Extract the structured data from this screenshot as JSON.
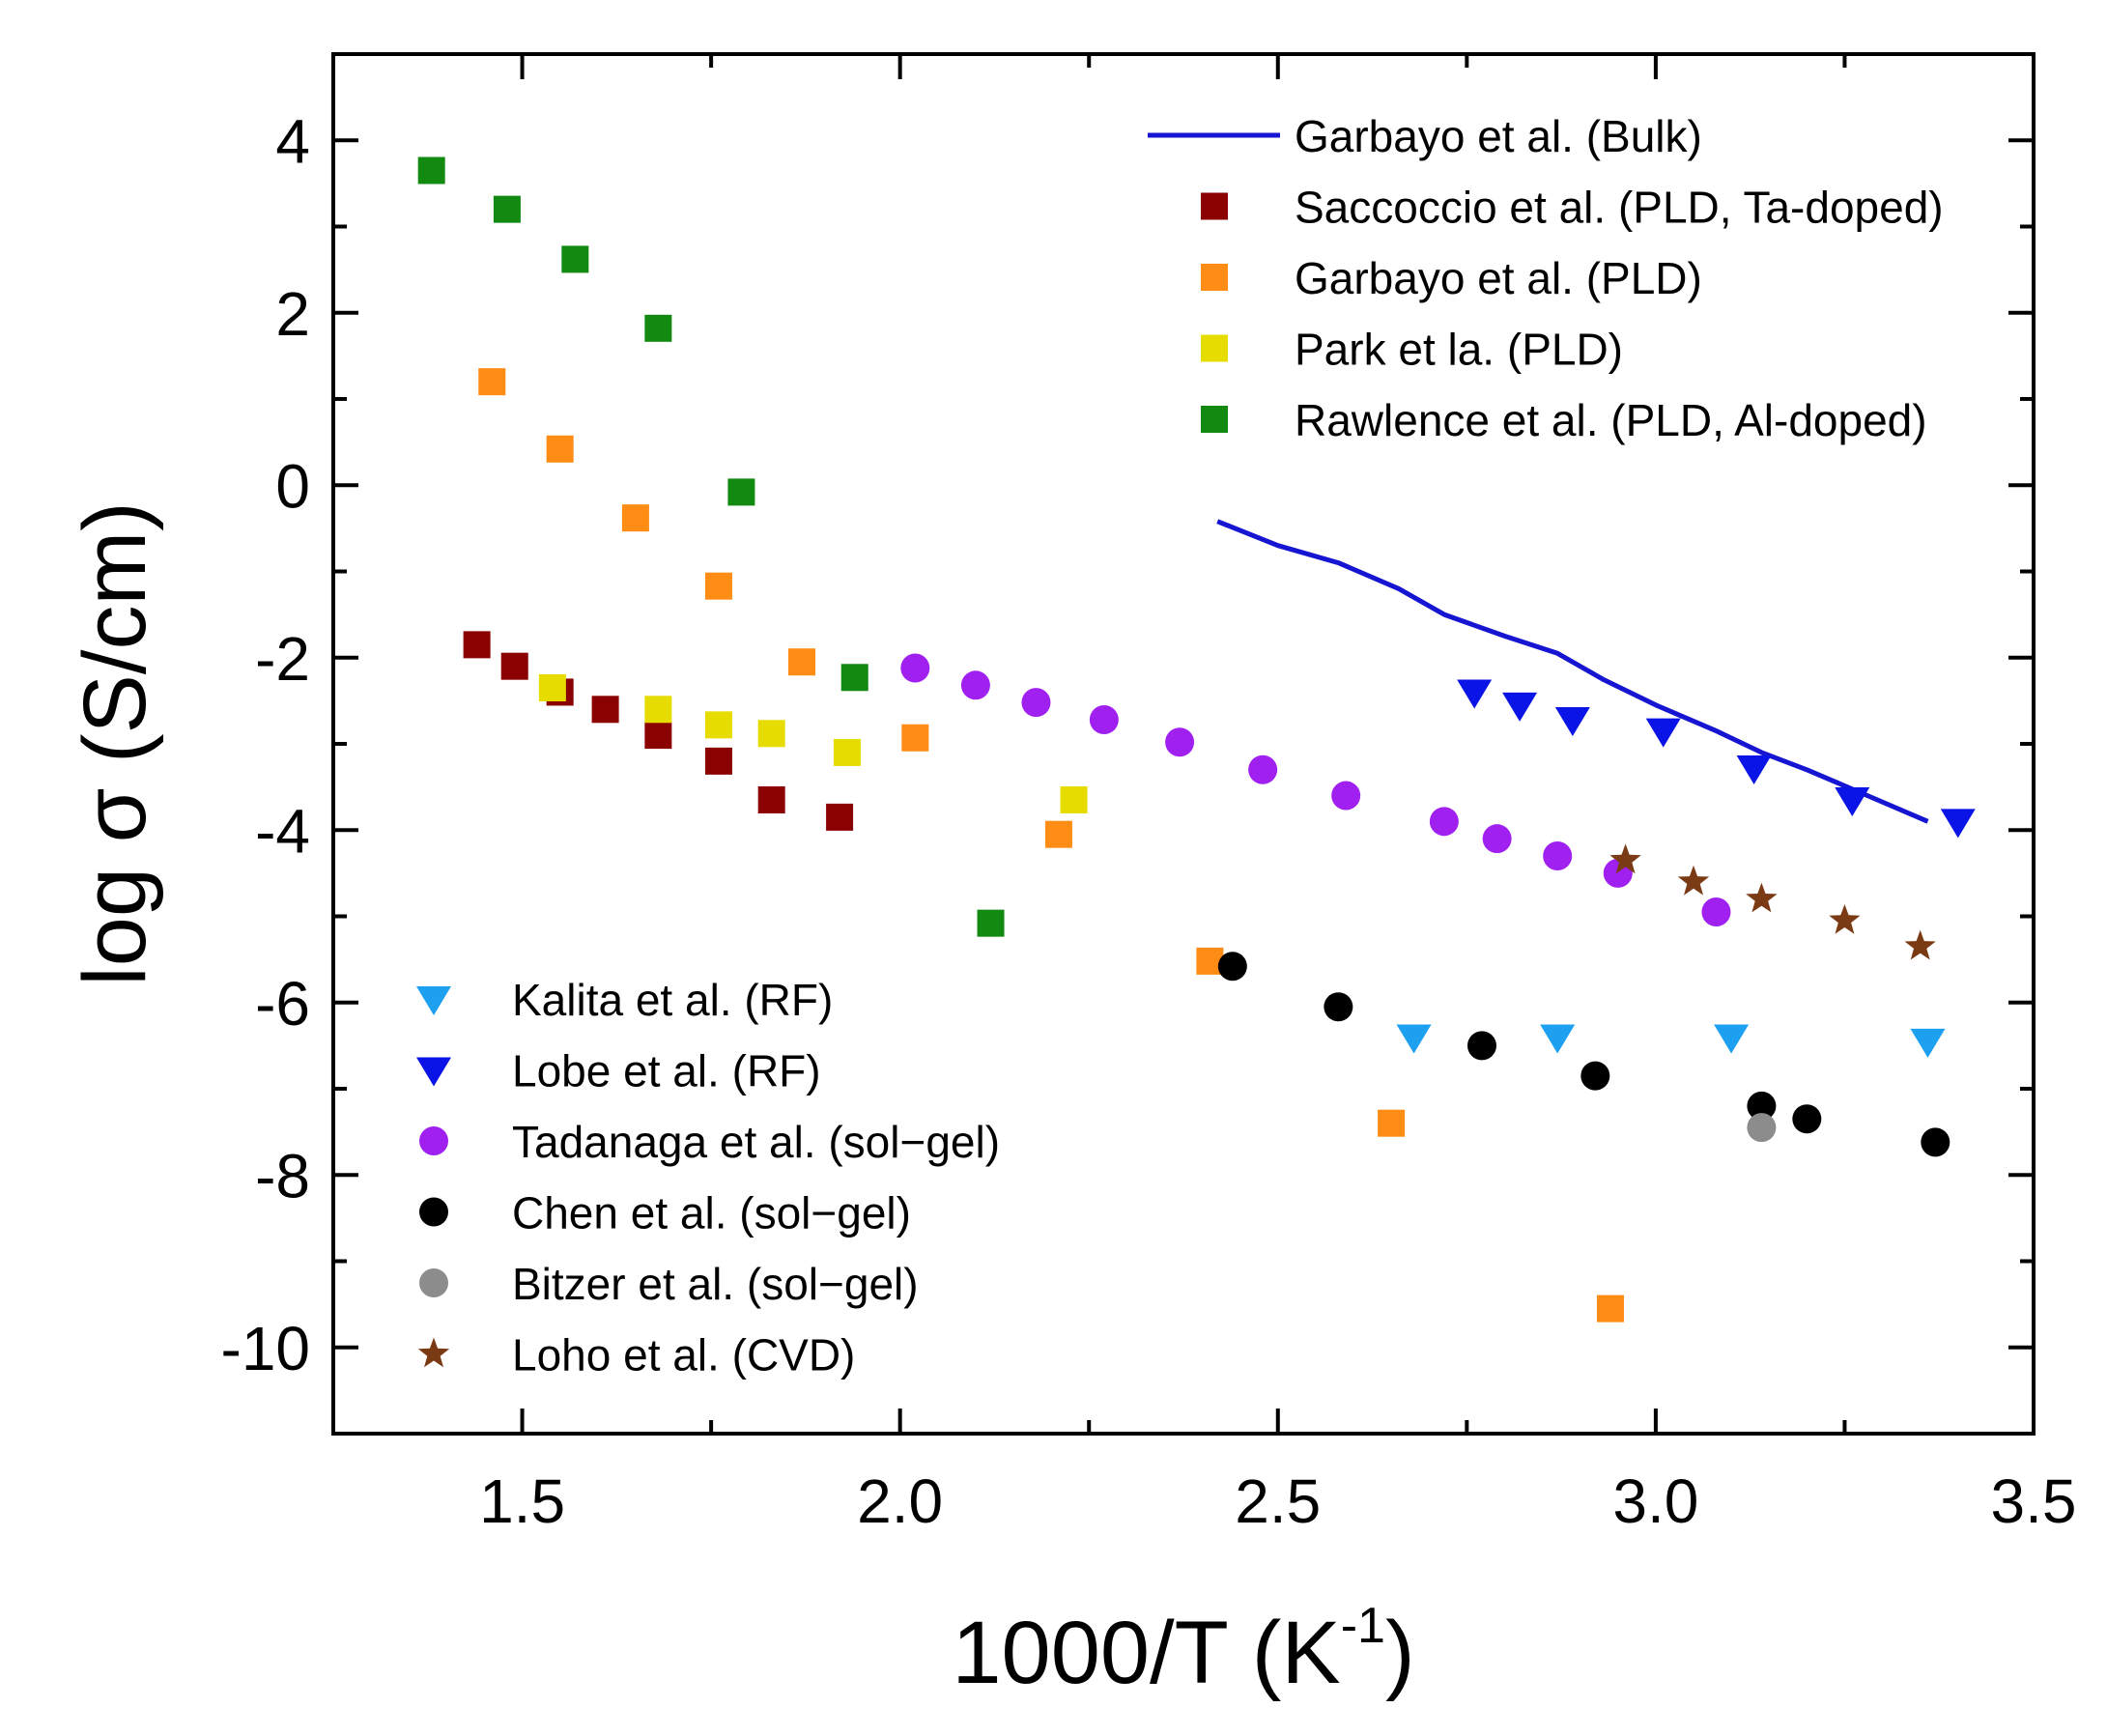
{
  "chart_data": {
    "type": "scatter",
    "title": "",
    "xlabel_main": "1000/T (K",
    "xlabel_sup": "-1",
    "xlabel_close": ")",
    "ylabel": "log σ (S/cm)",
    "xlim": [
      1.25,
      3.5
    ],
    "ylim": [
      -11,
      5
    ],
    "xticks": [
      1.5,
      2.0,
      2.5,
      3.0,
      3.5
    ],
    "xtick_labels": [
      "1.5",
      "2.0",
      "2.5",
      "3.0",
      "3.5"
    ],
    "yticks": [
      4,
      2,
      0,
      -2,
      -4,
      -6,
      -8,
      -10
    ],
    "ytick_labels": [
      "4",
      "2",
      "0",
      "-2",
      "-4",
      "-6",
      "-8",
      "-10"
    ],
    "series": [
      {
        "name": "Garbayo et al. (Bulk)",
        "marker": "line",
        "color": "#1515d2",
        "x": [
          2.42,
          2.5,
          2.58,
          2.66,
          2.72,
          2.8,
          2.87,
          2.93,
          3.0,
          3.08,
          3.14,
          3.2,
          3.28,
          3.36
        ],
        "y": [
          -0.42,
          -0.7,
          -0.9,
          -1.2,
          -1.5,
          -1.75,
          -1.95,
          -2.25,
          -2.55,
          -2.85,
          -3.1,
          -3.3,
          -3.6,
          -3.9
        ],
        "legend": "top"
      },
      {
        "name": "Saccoccio et al. (PLD, Ta-doped)",
        "marker": "square",
        "color": "#8b0000",
        "x": [
          1.44,
          1.49,
          1.55,
          1.61,
          1.68,
          1.76,
          1.83,
          1.92
        ],
        "y": [
          -1.85,
          -2.1,
          -2.4,
          -2.6,
          -2.9,
          -3.2,
          -3.65,
          -3.85
        ],
        "legend": "top"
      },
      {
        "name": "Garbayo et al. (PLD)",
        "marker": "square",
        "color": "#ff8c14",
        "x": [
          1.46,
          1.55,
          1.65,
          1.76,
          1.87,
          2.02,
          2.21,
          2.41,
          2.65,
          2.94
        ],
        "y": [
          1.2,
          0.42,
          -0.38,
          -1.17,
          -2.05,
          -2.93,
          -4.05,
          -5.52,
          -7.4,
          -9.55
        ],
        "legend": "top"
      },
      {
        "name": "Park et la. (PLD)",
        "marker": "square",
        "color": "#e6dc00",
        "x": [
          1.54,
          1.68,
          1.76,
          1.83,
          1.93,
          2.23
        ],
        "y": [
          -2.35,
          -2.6,
          -2.78,
          -2.88,
          -3.1,
          -3.65
        ],
        "legend": "top"
      },
      {
        "name": "Rawlence et al. (PLD, Al-doped)",
        "marker": "square",
        "color": "#128a12",
        "x": [
          1.38,
          1.48,
          1.57,
          1.68,
          1.79,
          1.94,
          2.12
        ],
        "y": [
          3.65,
          3.2,
          2.62,
          1.82,
          -0.08,
          -2.23,
          -5.08
        ],
        "legend": "top"
      },
      {
        "name": "Kalita et al. (RF)",
        "marker": "triangle-down",
        "color": "#1ea0f0",
        "x": [
          2.68,
          2.87,
          3.1,
          3.36
        ],
        "y": [
          -6.4,
          -6.4,
          -6.4,
          -6.45
        ],
        "legend": "bottom"
      },
      {
        "name": "Lobe et al. (RF)",
        "marker": "triangle-down",
        "color": "#0a14e6",
        "x": [
          2.76,
          2.82,
          2.89,
          3.01,
          3.13,
          3.26,
          3.4
        ],
        "y": [
          -2.4,
          -2.55,
          -2.72,
          -2.85,
          -3.28,
          -3.65,
          -3.9
        ],
        "legend": "bottom"
      },
      {
        "name": "Tadanaga et al. (sol−gel)",
        "marker": "circle",
        "color": "#a020f0",
        "x": [
          2.02,
          2.1,
          2.18,
          2.27,
          2.37,
          2.48,
          2.59,
          2.72,
          2.79,
          2.87,
          2.95,
          3.08
        ],
        "y": [
          -2.12,
          -2.32,
          -2.52,
          -2.72,
          -2.98,
          -3.3,
          -3.6,
          -3.9,
          -4.1,
          -4.3,
          -4.5,
          -4.95
        ],
        "legend": "bottom"
      },
      {
        "name": "Chen et al. (sol−gel)",
        "marker": "circle",
        "color": "#000000",
        "x": [
          2.44,
          2.58,
          2.77,
          2.92,
          3.14,
          3.2,
          3.37
        ],
        "y": [
          -5.58,
          -6.05,
          -6.5,
          -6.85,
          -7.2,
          -7.35,
          -7.62
        ],
        "legend": "bottom"
      },
      {
        "name": "Bitzer et al. (sol−gel)",
        "marker": "circle",
        "color": "#8c8c8c",
        "x": [
          3.14
        ],
        "y": [
          -7.45
        ],
        "legend": "bottom"
      },
      {
        "name": "Loho et al. (CVD)",
        "marker": "star",
        "color": "#7a3a14",
        "x": [
          2.96,
          3.05,
          3.14,
          3.25,
          3.35
        ],
        "y": [
          -4.35,
          -4.6,
          -4.8,
          -5.05,
          -5.35
        ],
        "legend": "bottom"
      }
    ],
    "legend_position": "top-right and bottom-left",
    "grid": false
  }
}
